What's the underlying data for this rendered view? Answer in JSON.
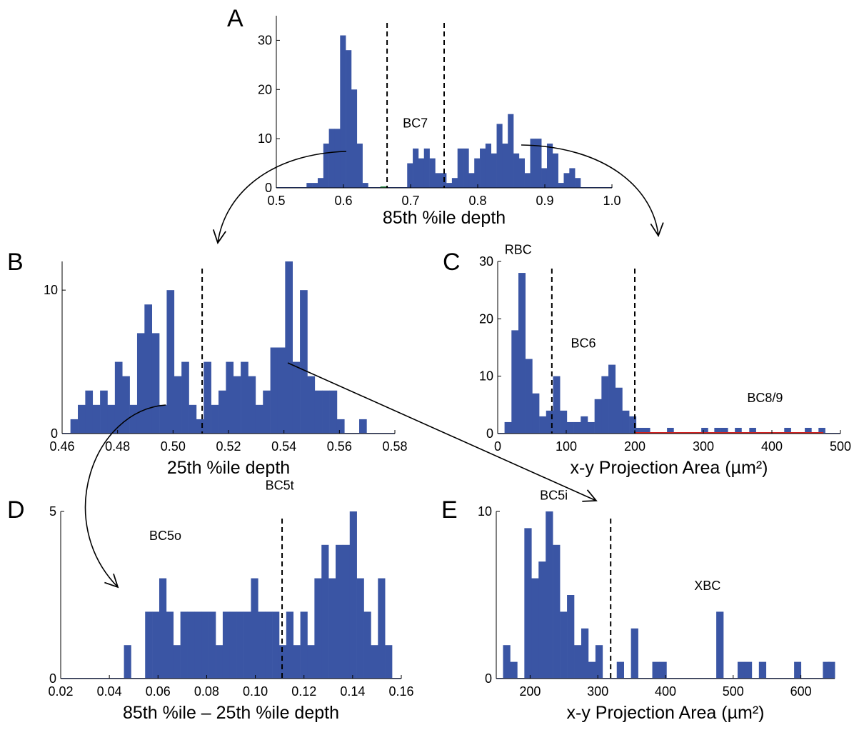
{
  "colors": {
    "bar": "#3a55a4",
    "axis": "#000000",
    "annot_green": "#2a8a4a",
    "annot_red": "#d02020"
  },
  "chart_data": [
    {
      "id": "A",
      "panel_label": "A",
      "type": "bar",
      "xlabel": "85th %ile depth",
      "xlim": [
        0.5,
        1.0
      ],
      "ylim": [
        0,
        35
      ],
      "xticks": [
        0.5,
        0.6,
        0.7,
        0.8,
        0.9,
        1.0
      ],
      "xtick_labels": [
        "0.5",
        "0.6",
        "0.7",
        "0.8",
        "0.9",
        "1.0"
      ],
      "yticks": [
        0,
        10,
        20,
        30
      ],
      "ytick_labels": [
        "0",
        "10",
        "20",
        "30"
      ],
      "bin_start": 0.545,
      "bin_width": 0.00833,
      "values": [
        1,
        1,
        2,
        9,
        12,
        12,
        31,
        28,
        20,
        9,
        1,
        0,
        0,
        0,
        0,
        0,
        0,
        0,
        5,
        8,
        6,
        8,
        6,
        3,
        3,
        1,
        2,
        8,
        8,
        3,
        6,
        8,
        9,
        7,
        13,
        9,
        15,
        7,
        6,
        3,
        10,
        10,
        4,
        9,
        7,
        1,
        3,
        4,
        2
      ],
      "dashed_lines": [
        0.665,
        0.75
      ],
      "baseline_marks": [
        {
          "from": 0.655,
          "to": 0.665,
          "color": "#2a8a4a"
        }
      ],
      "annotations": [
        {
          "text": "BC7",
          "x": 0.707,
          "y": 12.3
        }
      ],
      "grid": false
    },
    {
      "id": "B",
      "panel_label": "B",
      "type": "bar",
      "xlabel": "25th %ile depth",
      "xlim": [
        0.46,
        0.58
      ],
      "ylim": [
        0,
        12
      ],
      "xticks": [
        0.46,
        0.48,
        0.5,
        0.52,
        0.54,
        0.56,
        0.58
      ],
      "xtick_labels": [
        "0.46",
        "0.48",
        "0.50",
        "0.52",
        "0.54",
        "0.56",
        "0.58"
      ],
      "yticks": [
        0,
        10
      ],
      "ytick_labels": [
        "0",
        "10"
      ],
      "bin_start": 0.463,
      "bin_width": 0.00267,
      "values": [
        1,
        2,
        3,
        2,
        3,
        2,
        5,
        4,
        2,
        7,
        9,
        7,
        2,
        10,
        4,
        5,
        2,
        1,
        5,
        2,
        3,
        5,
        4,
        5,
        4,
        2,
        3,
        6,
        6,
        12,
        5,
        10,
        4,
        3,
        3,
        3,
        1,
        0,
        0,
        1
      ],
      "dashed_lines": [
        0.5105
      ],
      "annotations": [],
      "grid": false
    },
    {
      "id": "C",
      "panel_label": "C",
      "type": "bar",
      "xlabel": "x-y Projection Area (µm²)",
      "xlim": [
        0,
        500
      ],
      "ylim": [
        0,
        30
      ],
      "xticks": [
        0,
        100,
        200,
        300,
        400,
        500
      ],
      "xtick_labels": [
        "0",
        "100",
        "200",
        "300",
        "400",
        "500"
      ],
      "yticks": [
        0,
        10,
        20,
        30
      ],
      "ytick_labels": [
        "0",
        "10",
        "20",
        "30"
      ],
      "bin_start": 10,
      "bin_width": 10.1,
      "values": [
        2,
        18,
        28,
        13,
        7,
        3,
        4,
        10,
        4,
        2,
        2,
        3,
        2,
        6,
        10,
        12,
        8,
        4,
        3,
        1,
        1,
        0,
        0,
        0,
        0,
        0,
        0,
        0,
        0,
        0,
        0,
        0,
        0,
        0,
        0,
        0,
        0,
        0,
        0,
        0,
        0,
        0,
        0,
        0,
        0,
        0,
        0,
        0
      ],
      "extra_points": [
        {
          "x": 247,
          "y": 1
        },
        {
          "x": 297,
          "y": 1
        },
        {
          "x": 316,
          "y": 1
        },
        {
          "x": 326,
          "y": 1
        },
        {
          "x": 346,
          "y": 1
        },
        {
          "x": 367,
          "y": 1
        },
        {
          "x": 418,
          "y": 1
        },
        {
          "x": 448,
          "y": 1
        },
        {
          "x": 468,
          "y": 1
        }
      ],
      "extra_point_width": 10,
      "dashed_lines": [
        79,
        200
      ],
      "baseline_marks": [
        {
          "from": 200,
          "to": 475,
          "color": "#d02020"
        }
      ],
      "annotations": [
        {
          "text": "RBC",
          "x": 30,
          "y": 31.3
        },
        {
          "text": "BC6",
          "x": 125,
          "y": 15.0
        },
        {
          "text": "BC8/9",
          "x": 390,
          "y": 5.5
        }
      ],
      "grid": false
    },
    {
      "id": "D",
      "panel_label": "D",
      "type": "bar",
      "xlabel": "85th %ile – 25th %ile depth",
      "xlim": [
        0.02,
        0.16
      ],
      "ylim": [
        0,
        5
      ],
      "xticks": [
        0.02,
        0.04,
        0.06,
        0.08,
        0.1,
        0.12,
        0.14,
        0.16
      ],
      "xtick_labels": [
        "0.02",
        "0.04",
        "0.06",
        "0.08",
        "0.10",
        "0.12",
        "0.14",
        "0.16"
      ],
      "yticks": [
        0,
        5
      ],
      "ytick_labels": [
        "0",
        "5"
      ],
      "bin_start": 0.046,
      "bin_width": 0.0029,
      "values": [
        1,
        0,
        0,
        2,
        2,
        3,
        2,
        1,
        2,
        2,
        2,
        2,
        2,
        1,
        2,
        2,
        2,
        2,
        3,
        2,
        2,
        2,
        1,
        2,
        1,
        2,
        1,
        3,
        4,
        3,
        4,
        4,
        5,
        3,
        2,
        1,
        3,
        1
      ],
      "dashed_lines": [
        0.111
      ],
      "annotations": [
        {
          "text": "BC5o",
          "x": 0.063,
          "y": 4.15
        },
        {
          "text": "BC5t",
          "x": 0.11,
          "y": 5.65
        }
      ],
      "grid": false
    },
    {
      "id": "E",
      "panel_label": "E",
      "type": "bar",
      "xlabel": "x-y Projection Area (µm²)",
      "xlim": [
        150,
        650
      ],
      "ylim": [
        0,
        10
      ],
      "xticks": [
        200,
        300,
        400,
        500,
        600
      ],
      "xtick_labels": [
        "200",
        "300",
        "400",
        "500",
        "600"
      ],
      "yticks": [
        0,
        10
      ],
      "ytick_labels": [
        "0",
        "10"
      ],
      "bin_start": 160,
      "bin_width": 10.5,
      "values": [
        2,
        1,
        0,
        9,
        6,
        7,
        10,
        8,
        4,
        5,
        2,
        3,
        1,
        2,
        0,
        0,
        1,
        0,
        3,
        0,
        0,
        1,
        1,
        0,
        0,
        0,
        0,
        0,
        0,
        0,
        4,
        0,
        0,
        1,
        1,
        0,
        1,
        0,
        0,
        0,
        0,
        0,
        0,
        0,
        0,
        1,
        0,
        0,
        0,
        0,
        0,
        0,
        0,
        0,
        0,
        0,
        0,
        0,
        0,
        0,
        0,
        0,
        0,
        0,
        0,
        0,
        0,
        0,
        0,
        0,
        0,
        0,
        0,
        0,
        0,
        0,
        0,
        0,
        0,
        0,
        0,
        0,
        0,
        0,
        0,
        0,
        0,
        0,
        0,
        0,
        0,
        0,
        0,
        0,
        0,
        0,
        0,
        0,
        0,
        0,
        0,
        0,
        0,
        0,
        0,
        0,
        0,
        0,
        0,
        0,
        0,
        0,
        0,
        0,
        0,
        0,
        0,
        0,
        0,
        0,
        0,
        0,
        0,
        0
      ],
      "extra_points": [
        {
          "x": 590,
          "y": 1
        },
        {
          "x": 640,
          "y": 1
        }
      ],
      "extra_point_width": 10.5,
      "dashed_lines": [
        319
      ],
      "annotations": [
        {
          "text": "BC5i",
          "x": 235,
          "y": 10.7
        },
        {
          "text": "XBC",
          "x": 462,
          "y": 5.3
        }
      ],
      "grid": false
    }
  ]
}
